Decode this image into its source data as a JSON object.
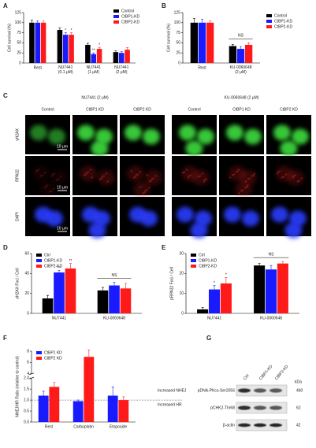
{
  "chart_data": [
    {
      "type": "bar",
      "panel": "A",
      "ylabel": "Cell survival (%)",
      "categories": [
        "Rest",
        "NU7441\n(0.1 μM)",
        "NU7441\n(1 μM)",
        "NU7441\n(2 μM)"
      ],
      "series": [
        {
          "name": "Control",
          "color": "#000000",
          "values": [
            100,
            82,
            45,
            27
          ],
          "errors": [
            6,
            5,
            4,
            3
          ]
        },
        {
          "name": "CtBP1-KD",
          "color": "#1a1aff",
          "values": [
            100,
            70,
            22,
            25
          ],
          "errors": [
            5,
            5,
            3,
            3
          ]
        },
        {
          "name": "CtBP2-KD",
          "color": "#ff1a1a",
          "values": [
            100,
            70,
            35,
            33
          ],
          "errors": [
            4,
            5,
            4,
            5
          ]
        }
      ],
      "ylim": [
        0,
        125
      ],
      "yticks": [
        0,
        25,
        50,
        75,
        100,
        125
      ],
      "legend": "upper right",
      "significance": [
        {
          "label": "*",
          "category": 1,
          "series": 1
        },
        {
          "label": "*",
          "category": 1,
          "series": 2
        },
        {
          "label": "**",
          "category": 2,
          "series": 1
        },
        {
          "label": "*",
          "category": 2,
          "series": 2
        }
      ]
    },
    {
      "type": "bar",
      "panel": "B",
      "ylabel": "Cell survival (%)",
      "categories": [
        "Rest",
        "KU-0060648\n(2 μM)"
      ],
      "series": [
        {
          "name": "Control",
          "color": "#000000",
          "values": [
            100,
            42
          ],
          "errors": [
            10,
            4
          ]
        },
        {
          "name": "CtBP1-KD",
          "color": "#1a1aff",
          "values": [
            100,
            35
          ],
          "errors": [
            8,
            6
          ]
        },
        {
          "name": "CtBP2-KD",
          "color": "#ff1a1a",
          "values": [
            100,
            45
          ],
          "errors": [
            5,
            5
          ]
        }
      ],
      "ylim": [
        0,
        125
      ],
      "yticks": [
        0,
        25,
        50,
        75,
        100,
        125
      ],
      "legend": "right",
      "significance": [
        {
          "label": "NS",
          "category": 1
        }
      ]
    },
    {
      "type": "bar",
      "panel": "D",
      "ylabel": "γH2AX Foci / Cell",
      "categories": [
        "NU7441",
        "KU-0060648"
      ],
      "series": [
        {
          "name": "Ctrl",
          "color": "#000000",
          "values": [
            15,
            23
          ],
          "errors": [
            3,
            3
          ]
        },
        {
          "name": "CtBP1-KD",
          "color": "#1a1aff",
          "values": [
            41,
            28
          ],
          "errors": [
            2,
            3
          ]
        },
        {
          "name": "CtBP2-KD",
          "color": "#ff1a1a",
          "values": [
            45,
            25
          ],
          "errors": [
            5,
            5
          ]
        }
      ],
      "ylim": [
        0,
        60
      ],
      "yticks": [
        0,
        20,
        40,
        60
      ],
      "legend": "upper left",
      "significance": [
        {
          "label": "**",
          "category": 0,
          "series": 1
        },
        {
          "label": "**",
          "category": 0,
          "series": 2
        },
        {
          "label": "NS",
          "category": 1
        }
      ]
    },
    {
      "type": "bar",
      "panel": "E",
      "ylabel": "pRPA32 Foci / Cell",
      "categories": [
        "NU7441",
        "KU-0060648"
      ],
      "series": [
        {
          "name": "Ctrl",
          "color": "#000000",
          "values": [
            2,
            24
          ],
          "errors": [
            1,
            1
          ]
        },
        {
          "name": "CtBP1-KD",
          "color": "#1a1aff",
          "values": [
            12,
            22
          ],
          "errors": [
            2,
            2
          ]
        },
        {
          "name": "CtBP2-KD",
          "color": "#ff1a1a",
          "values": [
            15,
            25
          ],
          "errors": [
            3,
            1
          ]
        }
      ],
      "ylim": [
        0,
        30
      ],
      "yticks": [
        0,
        10,
        20,
        30
      ],
      "legend": "upper left",
      "significance": [
        {
          "label": "*",
          "category": 0,
          "series": 1
        },
        {
          "label": "*",
          "category": 0,
          "series": 2
        },
        {
          "label": "NS",
          "category": 1
        }
      ]
    },
    {
      "type": "bar",
      "panel": "F",
      "ylabel": "NHEJ/HR Ratio (relative to control)",
      "categories": [
        "Rest",
        "Carboplatin",
        "Etoposide"
      ],
      "series": [
        {
          "name": "CtBP1 KD",
          "color": "#1a1aff",
          "values": [
            1.2,
            0.95,
            1.2
          ],
          "errors": [
            0.2,
            0.05,
            0.4
          ]
        },
        {
          "name": "CtBP2 KD",
          "color": "#ff1a1a",
          "values": [
            1.6,
            7,
            1.0
          ],
          "errors": [
            0.2,
            1.2,
            0.15
          ]
        }
      ],
      "ylim": [
        0,
        8
      ],
      "axis_break": [
        2,
        4
      ],
      "yticks": [
        {
          "value": 0,
          "label": "0.0"
        },
        {
          "value": 0.5,
          "label": "0.5"
        },
        {
          "value": 1,
          "label": "1.0"
        },
        {
          "value": 1.5,
          "label": "1.5"
        },
        {
          "value": 2,
          "label": "2.0"
        },
        4,
        6,
        8
      ],
      "legend": "upper left",
      "ref_line": 1,
      "annotations": [
        "Increased NHEJ",
        "Increased HR"
      ]
    }
  ],
  "panel_c": {
    "panel": "C",
    "groups": [
      {
        "title": "NU7441 (2 μM)",
        "columns": [
          "Control",
          "CtBP1 KD",
          "CtBP2 KD"
        ]
      },
      {
        "title": "KU-0060648 (2 μM)",
        "columns": [
          "Control",
          "CtBP1 KD",
          "CtBP2 KD"
        ]
      }
    ],
    "rows": [
      "γH2AX",
      "RPA32",
      "DAPI"
    ],
    "scale_bar": "10 μm"
  },
  "panel_g": {
    "panel": "G",
    "lanes": [
      "Ctrl",
      "CtBP1-KD",
      "CtBP2-KD"
    ],
    "unit": "kDa",
    "rows": [
      {
        "label": "pDNA-PKcs-Ser2056",
        "kda": "460"
      },
      {
        "label": "pCHK2-Thr68",
        "kda": "62"
      },
      {
        "label": "β-actin",
        "kda": "42"
      }
    ]
  }
}
